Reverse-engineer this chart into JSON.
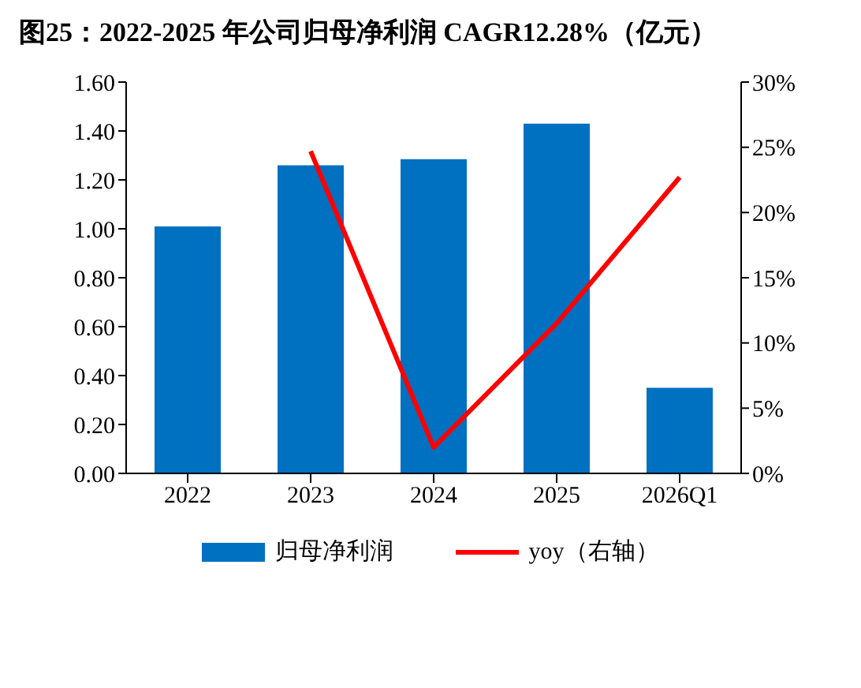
{
  "chart_data": {
    "type": "bar",
    "title": "图25：2022-2025 年公司归母净利润 CAGR12.28%（亿元）",
    "categories": [
      "2022",
      "2023",
      "2024",
      "2025",
      "2026Q1"
    ],
    "series": [
      {
        "name": "归母净利润",
        "color": "#0070c0",
        "values": [
          1.01,
          1.26,
          1.285,
          1.43,
          0.35
        ]
      },
      {
        "name": "yoy（右轴）",
        "type": "line",
        "axis": "y2",
        "color": "#ff0000",
        "values": [
          null,
          24.7,
          2.0,
          11.5,
          22.7
        ]
      }
    ],
    "ylim": [
      0,
      1.6
    ],
    "yticks": [
      {
        "value": 0,
        "label": "0.00"
      },
      {
        "value": 0.2,
        "label": "0.20"
      },
      {
        "value": 0.4,
        "label": "0.40"
      },
      {
        "value": 0.6,
        "label": "0.60"
      },
      {
        "value": 0.8,
        "label": "0.80"
      },
      {
        "value": 1.0,
        "label": "1.00"
      },
      {
        "value": 1.2,
        "label": "1.20"
      },
      {
        "value": 1.4,
        "label": "1.40"
      },
      {
        "value": 1.6,
        "label": "1.60"
      }
    ],
    "y2lim": [
      0,
      30
    ],
    "y2ticks": [
      {
        "value": 0,
        "label": "0%"
      },
      {
        "value": 5,
        "label": "5%"
      },
      {
        "value": 10,
        "label": "10%"
      },
      {
        "value": 15,
        "label": "15%"
      },
      {
        "value": 20,
        "label": "20%"
      },
      {
        "value": 25,
        "label": "25%"
      },
      {
        "value": 30,
        "label": "30%"
      }
    ],
    "legend": "bottom",
    "grid": false,
    "marker": "none",
    "line_style": "solid"
  }
}
